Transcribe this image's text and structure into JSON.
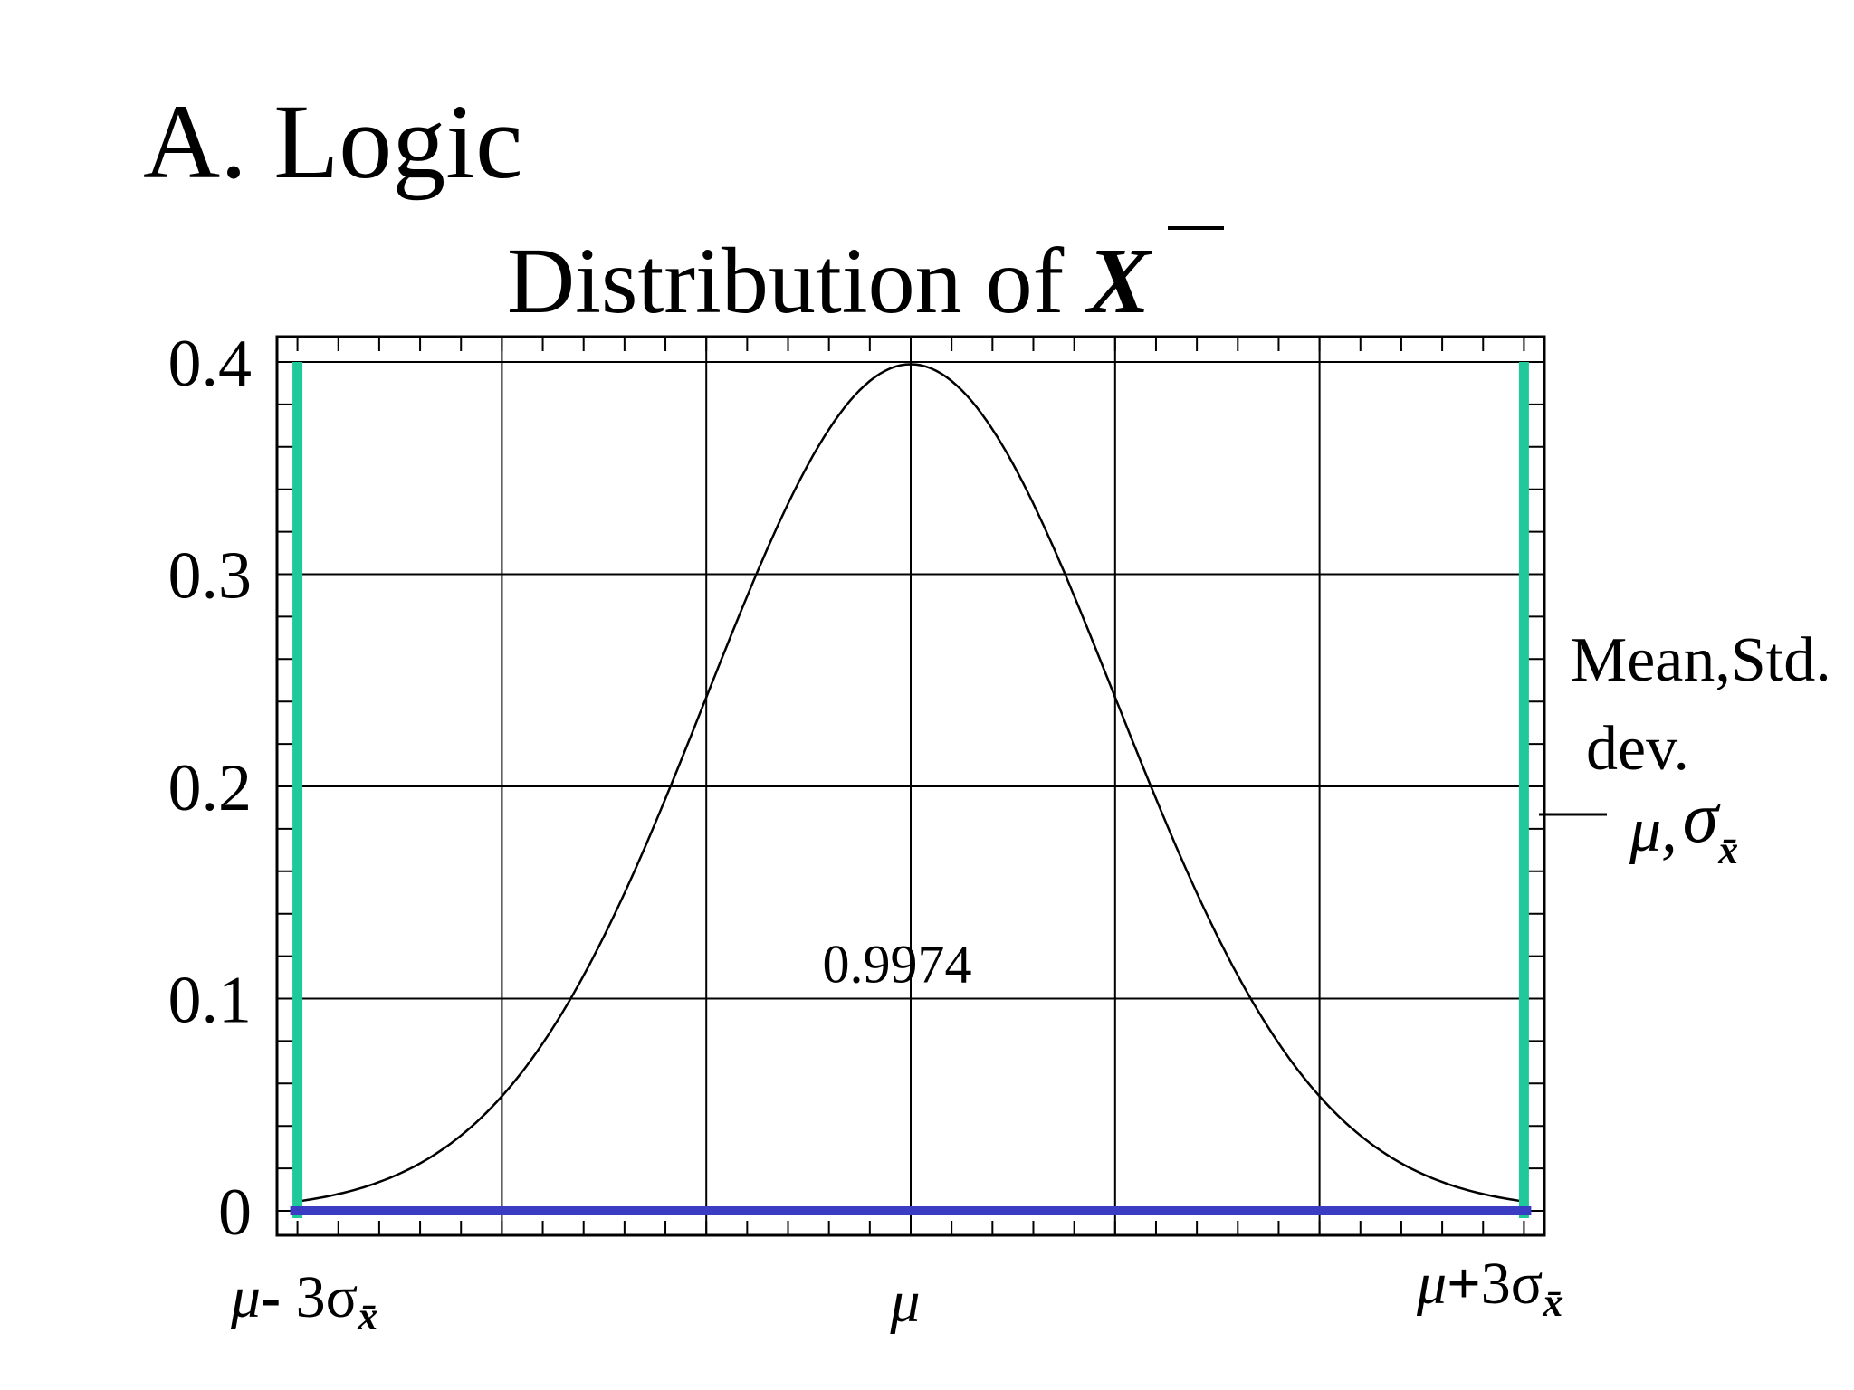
{
  "slide_title": "A. Logic",
  "chart_data": {
    "type": "line",
    "title": "Distribution of X̄",
    "title_text": "Distribution of ",
    "title_symbol": "X",
    "xlabel": "",
    "ylabel": "",
    "ylim": [
      0,
      0.4
    ],
    "xlim": [
      -3.1,
      3.1
    ],
    "grid": true,
    "ytick_labels": [
      "0",
      "0.1",
      "0.2",
      "0.3",
      "0.4"
    ],
    "yticks": [
      0,
      0.1,
      0.2,
      0.3,
      0.4
    ],
    "xgrid": [
      -2,
      -1,
      0,
      1,
      2
    ],
    "series": [
      {
        "curve": "normal density",
        "x": [
          -3,
          -2.5,
          -2,
          -1.5,
          -1,
          -0.5,
          0,
          0.5,
          1,
          1.5,
          2,
          2.5,
          3
        ],
        "y": [
          0.0044,
          0.0175,
          0.054,
          0.1295,
          0.242,
          0.3521,
          0.3989,
          0.3521,
          0.242,
          0.1295,
          0.054,
          0.0175,
          0.0044
        ],
        "color": "#000000"
      }
    ],
    "bounds": {
      "lower_x": -3,
      "upper_x": 3,
      "bound_color": "#1fc99a",
      "baseline_color": "#3a3dc4"
    },
    "area_label": "0.9974",
    "x_labels": {
      "lower": {
        "mu": "μ",
        "op": "-",
        "rest": " 3σ",
        "sub": "x̄"
      },
      "center": {
        "mu": "μ"
      },
      "upper": {
        "mu": "μ",
        "op": "+",
        "rest": "3σ",
        "sub": "x̄"
      }
    },
    "legend": {
      "line1": "Mean,Std.",
      "line2": "dev.",
      "mu": "μ,",
      "sigma": "σ",
      "sub": "x̄"
    }
  }
}
